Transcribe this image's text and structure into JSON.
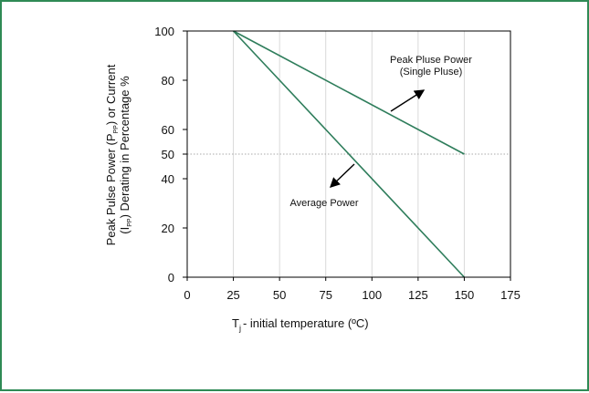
{
  "chart_data": {
    "type": "line",
    "xlabel": {
      "main": "T",
      "sub": "j",
      "rest": "- initial temperature (ºC)"
    },
    "ylabel": {
      "line1": {
        "pre": "Peak Pulse Power (P",
        "sub": "PP",
        "post": ") or Current"
      },
      "line2": {
        "pre": "(I",
        "sub": "PP",
        "post": ") Derating in Percentage %"
      }
    },
    "xlim": [
      0,
      175
    ],
    "ylim": [
      0,
      100
    ],
    "xticks": [
      0,
      25,
      50,
      75,
      100,
      125,
      150,
      175
    ],
    "yticks": [
      0,
      20,
      40,
      50,
      60,
      80,
      100
    ],
    "grid": {
      "vertical": true,
      "horizontal": false
    },
    "reference_line": {
      "y": 50,
      "style": "dotted"
    },
    "series": [
      {
        "name": "Peak Pluse Power (Single Pluse)",
        "x": [
          25,
          150
        ],
        "y": [
          100,
          50
        ]
      },
      {
        "name": "Average Power",
        "x": [
          25,
          150
        ],
        "y": [
          100,
          0
        ]
      }
    ],
    "annotations": [
      {
        "lines": [
          "Peak Pluse Power",
          "(Single Pluse)"
        ],
        "series": 0
      },
      {
        "lines": [
          "Average Power"
        ],
        "series": 1
      }
    ],
    "colors": {
      "line": "#2e7d5b",
      "grid": "#d9d9d9",
      "border": "#2f8a55",
      "axis": "#000000"
    }
  }
}
